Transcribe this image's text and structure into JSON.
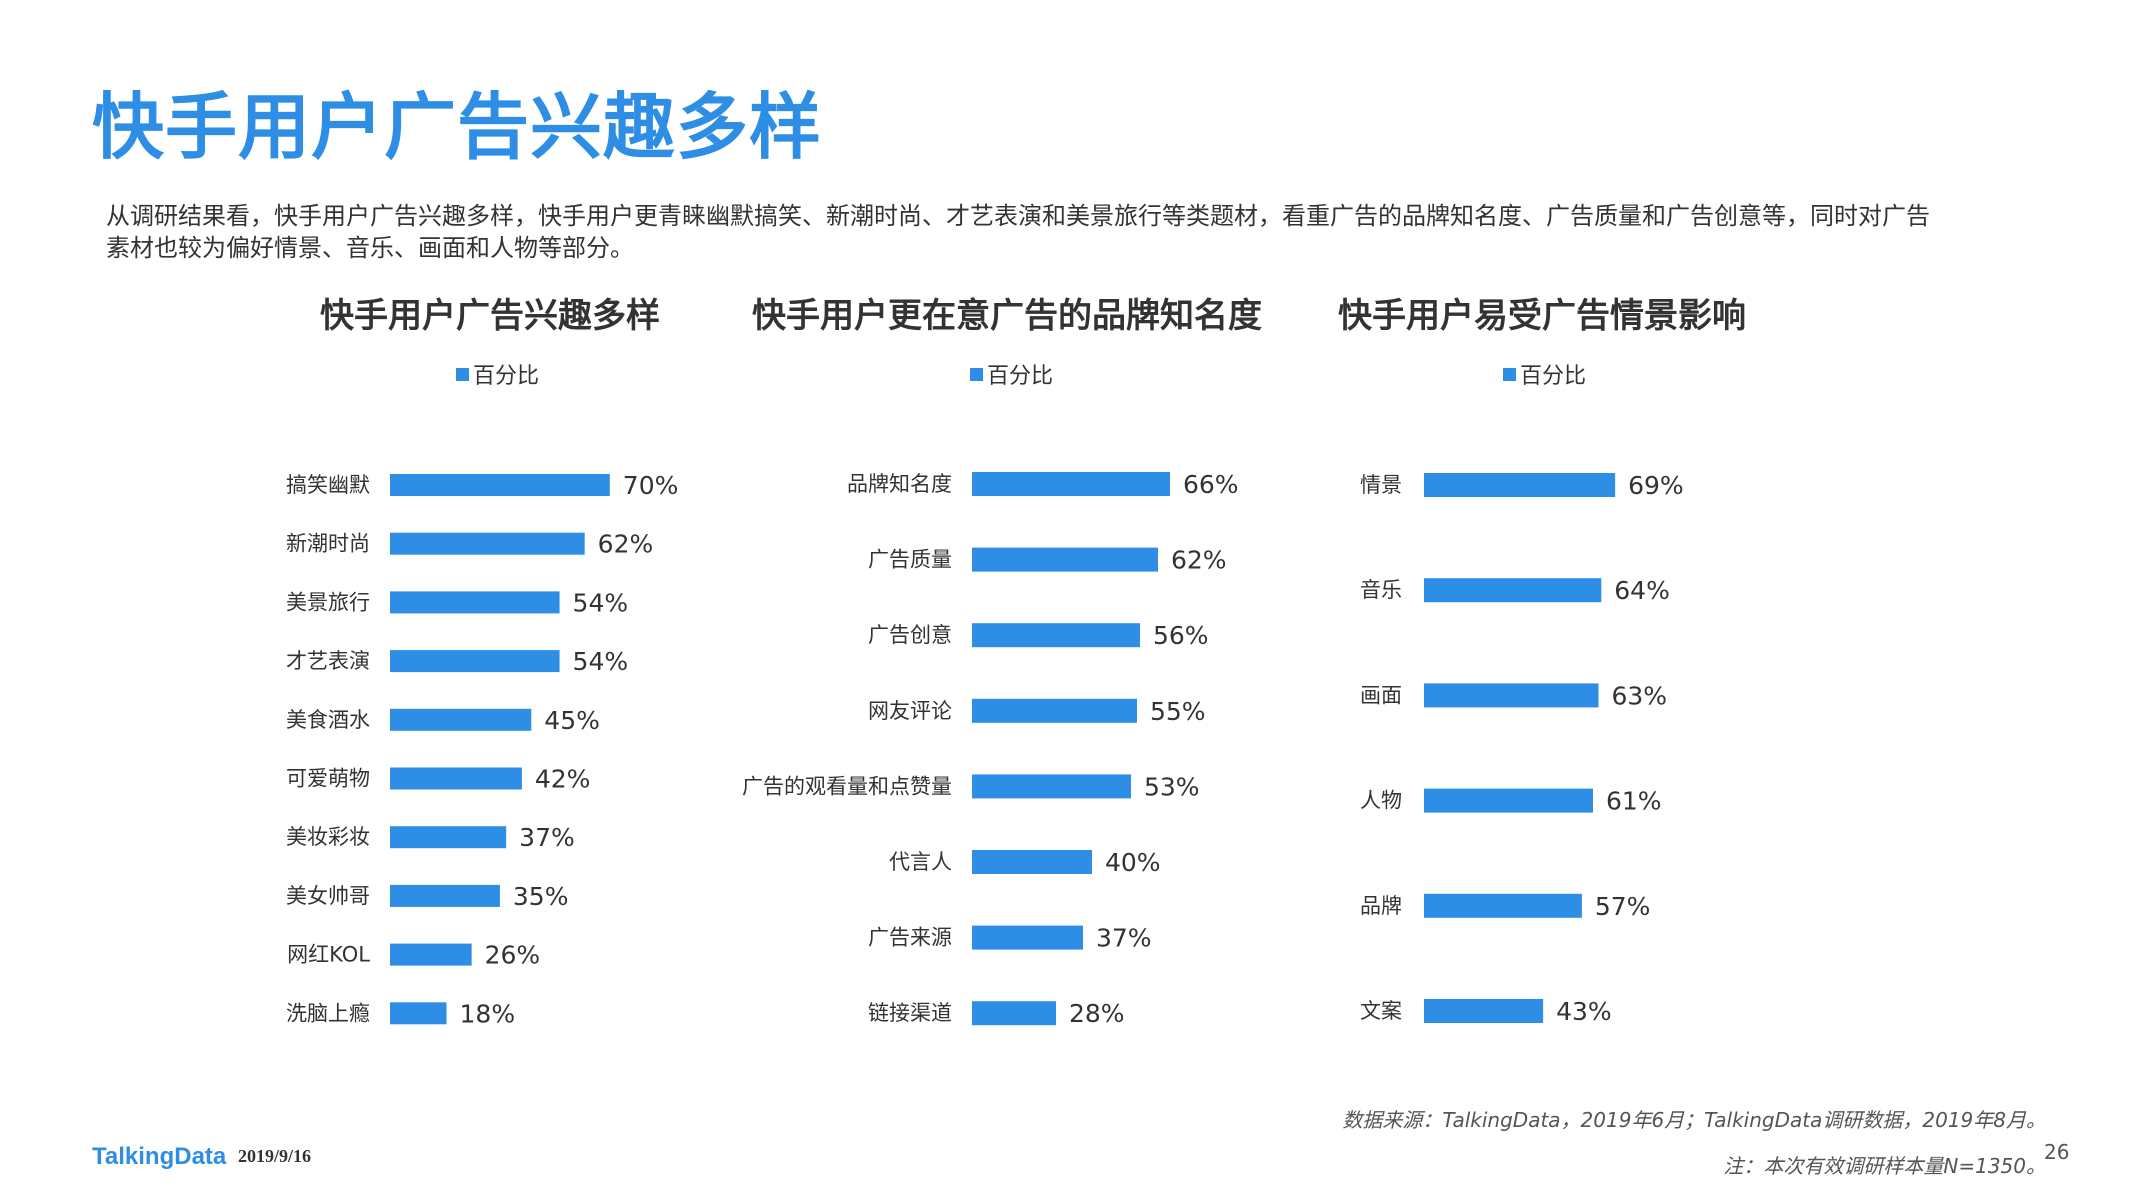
{
  "title": "快手用户广告兴趣多样",
  "intro": [
    "从调研结果看，快手用户广告兴趣多样，快手用户更青睐幽默搞笑、新潮时尚、才艺表演和美景旅行等类题材，看重广告的品牌知名度、广告质量和广告创意等，同时对广告",
    "素材也较为偏好情景、音乐、画面和人物等部分。"
  ],
  "colors": {
    "accent": "#2e8ee6",
    "bar": "#2e8ee6",
    "text": "#333333"
  },
  "chart_data": [
    {
      "type": "bar",
      "orientation": "horizontal",
      "title": "快手用户广告兴趣多样",
      "legend": "百分比",
      "legend_position": "top-center",
      "series": [
        {
          "name": "百分比"
        }
      ],
      "categories": [
        "搞笑幽默",
        "新潮时尚",
        "美景旅行",
        "才艺表演",
        "美食酒水",
        "可爱萌物",
        "美妆彩妆",
        "美女帅哥",
        "网红KOL",
        "洗脑上瘾"
      ],
      "values": [
        70,
        62,
        54,
        54,
        45,
        42,
        37,
        35,
        26,
        18
      ],
      "value_labels": [
        "70%",
        "62%",
        "54%",
        "54%",
        "45%",
        "42%",
        "37%",
        "35%",
        "26%",
        "18%"
      ],
      "unit": "%",
      "xlim": [
        0,
        100
      ],
      "grid": false
    },
    {
      "type": "bar",
      "orientation": "horizontal",
      "title": "快手用户更在意广告的品牌知名度",
      "legend": "百分比",
      "legend_position": "top-center",
      "series": [
        {
          "name": "百分比"
        }
      ],
      "categories": [
        "品牌知名度",
        "广告质量",
        "广告创意",
        "网友评论",
        "广告的观看量和点赞量",
        "代言人",
        "广告来源",
        "链接渠道"
      ],
      "values": [
        66,
        62,
        56,
        55,
        53,
        40,
        37,
        28
      ],
      "value_labels": [
        "66%",
        "62%",
        "56%",
        "55%",
        "53%",
        "40%",
        "37%",
        "28%"
      ],
      "unit": "%",
      "xlim": [
        0,
        100
      ],
      "grid": false
    },
    {
      "type": "bar",
      "orientation": "horizontal",
      "title": "快手用户易受广告情景影响",
      "legend": "百分比",
      "legend_position": "top-center",
      "series": [
        {
          "name": "百分比"
        }
      ],
      "categories": [
        "情景",
        "音乐",
        "画面",
        "人物",
        "品牌",
        "文案"
      ],
      "values": [
        69,
        64,
        63,
        61,
        57,
        43
      ],
      "value_labels": [
        "69%",
        "64%",
        "63%",
        "61%",
        "57%",
        "43%"
      ],
      "unit": "%",
      "xlim": [
        0,
        100
      ],
      "grid": false
    }
  ],
  "footer": {
    "source": "数据来源：TalkingData，2019年6月；TalkingData调研数据，2019年8月。",
    "note": "注：本次有效调研样本量N=1350。",
    "page_number": "26",
    "logo": "TalkingData",
    "date": "2019/9/16"
  }
}
